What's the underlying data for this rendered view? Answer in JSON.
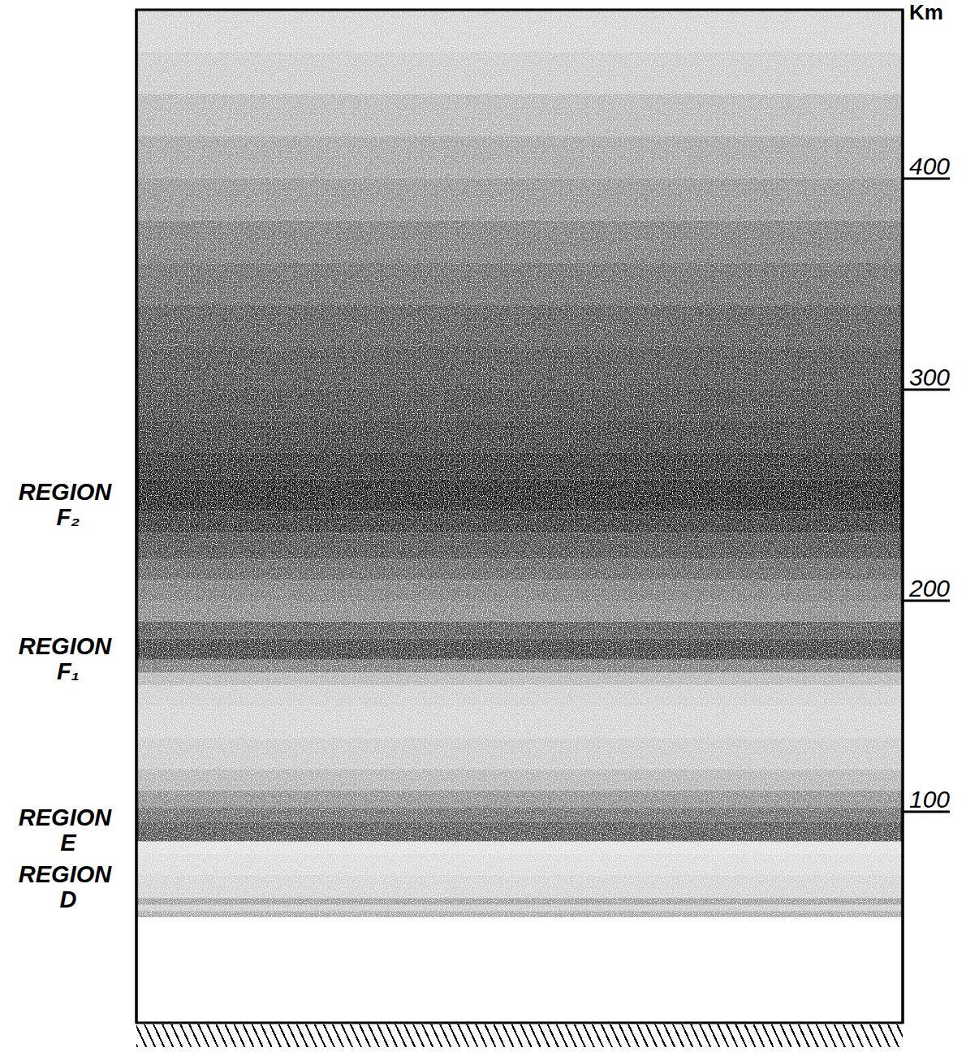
{
  "chart_data": {
    "type": "diagram",
    "y_label": "Km",
    "ylim": [
      0,
      480
    ],
    "yticks": [
      100,
      200,
      300,
      400
    ],
    "tick_labels": "y",
    "regions": [
      {
        "label": "REGION F₂",
        "altitude": 246
      },
      {
        "label": "REGION F₁",
        "altitude": 173
      },
      {
        "label": "REGION E",
        "altitude": 92
      },
      {
        "label": "REGION D",
        "altitude": 65
      }
    ],
    "ionization": {
      "altitude": [
        0,
        50,
        53,
        56,
        59,
        70,
        80,
        86,
        95,
        102,
        110,
        120,
        135,
        150,
        160,
        166,
        172,
        182,
        190,
        200,
        210,
        220,
        232,
        242,
        258,
        270,
        285,
        300,
        320,
        340,
        360,
        380,
        400,
        420,
        440,
        460
      ],
      "density": [
        0,
        0.35,
        0.2,
        0.4,
        0.18,
        0.15,
        0.12,
        0.7,
        0.6,
        0.45,
        0.3,
        0.22,
        0.18,
        0.2,
        0.3,
        0.55,
        0.8,
        0.7,
        0.5,
        0.55,
        0.65,
        0.75,
        0.85,
        0.92,
        0.88,
        0.82,
        0.78,
        0.75,
        0.7,
        0.62,
        0.55,
        0.45,
        0.38,
        0.3,
        0.22,
        0.18
      ]
    }
  }
}
